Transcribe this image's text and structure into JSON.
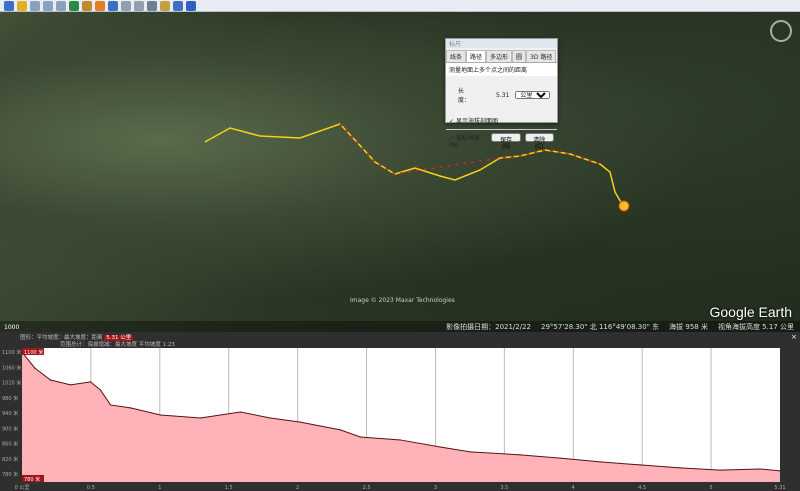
{
  "toolbar": {
    "icons": [
      "sidebar-icon",
      "placemark-icon",
      "polygon-icon",
      "path-icon",
      "overlay-icon",
      "tour-icon",
      "historical-imagery-icon",
      "sun-icon",
      "planets-icon",
      "ruler-icon",
      "email-icon",
      "print-icon",
      "save-image-icon",
      "view-in-maps-icon",
      "earth-icon"
    ]
  },
  "map": {
    "logo": "Google Earth",
    "copyright": "Image © 2023 Maxar Technologies",
    "badge": "1000",
    "track_colors": {
      "path": "#f2d21a",
      "highlight": "#d4231a"
    }
  },
  "status": {
    "imagery_date": "影像拍摄日期：2021/2/22",
    "coords": "29°57'28.30\" 北 116°49'08.30\" 东",
    "elevation": "海拔  958 米",
    "eye_alt": "视角海拔高度  5.17 公里"
  },
  "dialog": {
    "title": "标尺",
    "tabs": [
      "线条",
      "路径",
      "多边形",
      "圆",
      "3D 路径"
    ],
    "active_tab": 1,
    "description": "测量地面上多个点之间的距离",
    "length_label": "长度：",
    "length_value": "5.31",
    "unit": "公里",
    "show_profile": "显示海拔剖面图",
    "mouse_nav": "鼠标导航(N)",
    "save": "保存(S)",
    "clear": "清除(C)"
  },
  "profile": {
    "info1": "图形：平均坡度：最大坡度：距离",
    "info1_highlight": "5.31 公里",
    "info2": "范围总计：海拔增减：最大坡度  平均坡度",
    "info2_value": "1:23",
    "top_marker": "1100 米",
    "bottom_marker": "780 米",
    "close": "×"
  },
  "chart_data": {
    "type": "area",
    "xlabel": "",
    "ylabel": "",
    "unit_x": "公里",
    "unit_y": "米",
    "xlim": [
      0,
      5.31
    ],
    "ylim": [
      750,
      1110
    ],
    "fill": "#ffb3b8",
    "line": "#5a1010",
    "yticks": [
      "1100 米",
      "1060 米",
      "1020 米",
      "980 米",
      "940 米",
      "900 米",
      "860 米",
      "820 米",
      "780 米"
    ],
    "xticks": [
      "0 公里",
      "0.5",
      "1",
      "1.5",
      "2",
      "2.5",
      "3",
      "3.5",
      "4",
      "4.5",
      "5",
      "5.31"
    ],
    "x": [
      0,
      0.09,
      0.2,
      0.34,
      0.48,
      0.55,
      0.62,
      0.76,
      0.97,
      1.25,
      1.53,
      1.74,
      1.95,
      2.23,
      2.37,
      2.65,
      2.93,
      3.14,
      3.49,
      3.77,
      4.05,
      4.33,
      4.61,
      4.89,
      5.17,
      5.31
    ],
    "y": [
      1099,
      1056,
      1024,
      1011,
      1019,
      997,
      957,
      949,
      930,
      922,
      938,
      922,
      911,
      890,
      871,
      863,
      844,
      831,
      823,
      814,
      804,
      796,
      788,
      782,
      785,
      780
    ]
  }
}
